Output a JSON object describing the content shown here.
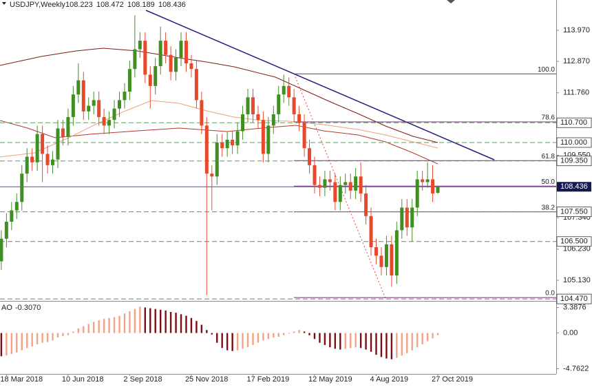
{
  "chart_data": {
    "type": "candlestick",
    "title": "USDJPY,Weekly",
    "categories": [
      null,
      null,
      null,
      "18 Mar 2018",
      null,
      null,
      null,
      null,
      null,
      null,
      null,
      null,
      null,
      null,
      null,
      "10 Jun 2018",
      null,
      null,
      null,
      null,
      null,
      null,
      null,
      null,
      null,
      null,
      null,
      "2 Sep 2018",
      null,
      null,
      null,
      null,
      null,
      null,
      null,
      null,
      null,
      null,
      null,
      "25 Nov 2018",
      null,
      null,
      null,
      null,
      null,
      null,
      null,
      null,
      null,
      null,
      null,
      "17 Feb 2019",
      null,
      null,
      null,
      null,
      null,
      null,
      null,
      null,
      null,
      null,
      null,
      "12 May 2019",
      null,
      null,
      null,
      null,
      null,
      null,
      null,
      null,
      null,
      null,
      null,
      "4 Aug 2019",
      null,
      null,
      null,
      null,
      null,
      null,
      null,
      null,
      null,
      null,
      null,
      "27 Oct 2019"
    ],
    "open": [
      105.9,
      105.4,
      105.8,
      106.6,
      107.2,
      107.6,
      107.9,
      108.9,
      109.5,
      109.3,
      110.3,
      109.6,
      109.2,
      109.4,
      110.5,
      110.2,
      110.9,
      111.7,
      112.2,
      111.1,
      111.3,
      111.5,
      110.9,
      110.6,
      110.8,
      111.2,
      111.5,
      111.8,
      112.6,
      113.3,
      113.6,
      112.4,
      112.0,
      112.7,
      113.6,
      113.1,
      112.5,
      113.0,
      113.6,
      112.8,
      112.6,
      111.5,
      110.6,
      108.9,
      108.8,
      110.0,
      109.8,
      110.1,
      109.9,
      110.4,
      111.0,
      111.6,
      111.0,
      110.8,
      109.6,
      110.6,
      111.0,
      111.7,
      112.0,
      111.6,
      111.0,
      110.7,
      109.8,
      109.2,
      108.5,
      108.4,
      108.7,
      108.6,
      107.9,
      108.5,
      108.6,
      108.3,
      108.8,
      108.2,
      107.4,
      106.3,
      106.0,
      105.6,
      106.4,
      105.3,
      106.9,
      107.7,
      107.0,
      107.7,
      108.7,
      108.6,
      108.7,
      108.223
    ],
    "high": [
      106.2,
      106.1,
      106.9,
      107.5,
      107.9,
      108.2,
      109.2,
      109.8,
      109.8,
      110.6,
      110.6,
      109.9,
      109.7,
      110.8,
      110.8,
      111.2,
      112.0,
      112.8,
      112.5,
      111.6,
      111.8,
      111.8,
      111.2,
      111.1,
      111.5,
      111.8,
      112.1,
      112.9,
      114.5,
      113.9,
      113.9,
      112.7,
      113.0,
      114.1,
      113.9,
      113.4,
      113.3,
      113.9,
      113.9,
      113.1,
      112.9,
      111.8,
      110.9,
      109.2,
      110.3,
      110.3,
      110.4,
      110.4,
      110.7,
      111.3,
      111.9,
      111.9,
      111.3,
      111.1,
      110.9,
      111.3,
      112.0,
      112.4,
      112.3,
      111.9,
      111.3,
      111.0,
      110.1,
      109.5,
      108.8,
      109.0,
      109.0,
      108.9,
      108.8,
      108.9,
      108.9,
      109.1,
      109.3,
      108.5,
      107.7,
      106.6,
      106.3,
      106.7,
      106.7,
      107.2,
      108.0,
      108.0,
      108.0,
      109.0,
      109.0,
      109.3,
      109.2,
      108.472
    ],
    "low": [
      105.1,
      105.1,
      105.5,
      106.3,
      106.9,
      107.3,
      107.6,
      108.6,
      109.0,
      109.0,
      108.6,
      108.9,
      108.9,
      109.1,
      109.9,
      109.9,
      110.6,
      111.4,
      110.8,
      110.8,
      111.0,
      110.6,
      110.3,
      110.3,
      110.5,
      110.9,
      111.2,
      111.5,
      112.3,
      113.0,
      112.1,
      111.2,
      111.7,
      112.4,
      112.8,
      112.2,
      112.2,
      112.7,
      112.5,
      112.3,
      111.2,
      110.3,
      104.6,
      107.6,
      108.5,
      109.5,
      109.5,
      109.6,
      109.6,
      110.1,
      110.7,
      110.7,
      110.5,
      109.3,
      109.3,
      110.3,
      110.7,
      111.4,
      111.3,
      110.7,
      110.4,
      109.5,
      108.9,
      108.2,
      108.1,
      108.1,
      108.3,
      107.6,
      107.6,
      108.2,
      108.0,
      108.0,
      107.9,
      107.1,
      106.0,
      105.7,
      105.3,
      105.3,
      104.9,
      105.0,
      106.6,
      106.7,
      106.5,
      107.4,
      108.3,
      108.4,
      107.9,
      108.189
    ],
    "close": [
      105.4,
      105.8,
      106.6,
      107.2,
      107.6,
      107.9,
      108.9,
      109.5,
      109.3,
      110.3,
      109.6,
      109.2,
      109.4,
      110.5,
      110.2,
      110.9,
      111.7,
      112.2,
      111.1,
      111.3,
      111.5,
      110.9,
      110.6,
      110.8,
      111.2,
      111.5,
      111.8,
      112.6,
      113.3,
      113.6,
      112.4,
      112.0,
      112.7,
      113.6,
      113.1,
      112.5,
      113.0,
      113.6,
      112.8,
      112.6,
      111.5,
      110.6,
      108.9,
      108.8,
      110.0,
      109.8,
      110.1,
      109.9,
      110.4,
      111.0,
      111.6,
      111.0,
      110.8,
      109.6,
      110.6,
      111.0,
      111.7,
      112.0,
      111.6,
      111.0,
      110.7,
      109.8,
      109.2,
      108.5,
      108.4,
      108.7,
      108.6,
      107.9,
      108.5,
      108.6,
      108.3,
      108.8,
      108.2,
      107.4,
      106.3,
      106.0,
      105.6,
      106.4,
      105.3,
      106.9,
      107.7,
      107.0,
      107.7,
      108.7,
      108.6,
      108.7,
      108.2,
      108.436
    ],
    "up_color": "#3f8f22",
    "down_color": "#e8482c",
    "ylim": [
      104.4,
      115.04
    ],
    "yticks": [
      {
        "value": 113.97,
        "label": "113.970"
      },
      {
        "value": 112.87,
        "label": "112.870"
      },
      {
        "value": 111.76,
        "label": "111.760"
      },
      {
        "value": 109.55,
        "label": "109.550"
      },
      {
        "value": 107.34,
        "label": "107.340"
      },
      {
        "value": 106.23,
        "label": "106.230"
      },
      {
        "value": 105.13,
        "label": "105.130"
      }
    ],
    "levels": [
      {
        "value": 110.7,
        "label": "110.700",
        "color": "#5b9e5b"
      },
      {
        "value": 110.0,
        "label": "110.000",
        "color": "#5b9e5b"
      },
      {
        "value": 109.35,
        "label": "109.350",
        "color": "#5b9e5b"
      },
      {
        "value": 107.55,
        "label": "107.550",
        "color": "#777777"
      },
      {
        "value": 106.5,
        "label": "106.500",
        "color": "#777777"
      },
      {
        "value": 104.47,
        "label": "104.470",
        "color": "#777777"
      }
    ],
    "fib": [
      {
        "value": 112.43,
        "label": "100.0"
      },
      {
        "value": 110.73,
        "label": "78.6"
      },
      {
        "value": 109.36,
        "label": "61.8"
      },
      {
        "value": 108.46,
        "label": "50.0"
      },
      {
        "value": 107.55,
        "label": "38.2"
      },
      {
        "value": 104.52,
        "label": "0.0"
      }
    ],
    "fib_color": "#7a2a80",
    "ao": {
      "name": "AO",
      "current_label": "-0.3070",
      "values": [
        -2.8,
        -3.0,
        -3.1,
        -3.0,
        -2.8,
        -2.6,
        -2.3,
        -2.0,
        -1.8,
        -1.5,
        -1.3,
        -1.2,
        -1.0,
        -0.6,
        -0.4,
        -0.3,
        0.2,
        0.6,
        0.9,
        1.2,
        1.5,
        1.7,
        1.9,
        2.0,
        2.1,
        2.3,
        2.6,
        2.9,
        3.2,
        3.5,
        3.4,
        3.3,
        3.2,
        3.1,
        3.0,
        2.8,
        2.7,
        2.5,
        2.3,
        2.0,
        1.6,
        1.1,
        0.4,
        -0.2,
        -1.3,
        -2.0,
        -2.3,
        -2.4,
        -2.3,
        -2.1,
        -1.9,
        -1.6,
        -1.3,
        -1.0,
        -0.8,
        -0.6,
        -0.5,
        -0.3,
        -0.1,
        0.2,
        0.4,
        0.2,
        -0.3,
        -0.8,
        -1.3,
        -1.6,
        -1.9,
        -2.1,
        -2.2,
        -2.1,
        -2.0,
        -1.9,
        -2.0,
        -2.2,
        -2.5,
        -2.9,
        -3.2,
        -3.4,
        -3.5,
        -3.3,
        -3.0,
        -2.7,
        -2.3,
        -1.9,
        -1.5,
        -1.1,
        -0.7,
        -0.307
      ],
      "up_color": "#f4a184",
      "down_color": "#7d0d10",
      "ylim": [
        -5.45,
        4.18
      ],
      "yticks": [
        3.3876,
        {
          "value": 0,
          "label": "0.00"
        },
        -4.7622
      ]
    }
  }
}
